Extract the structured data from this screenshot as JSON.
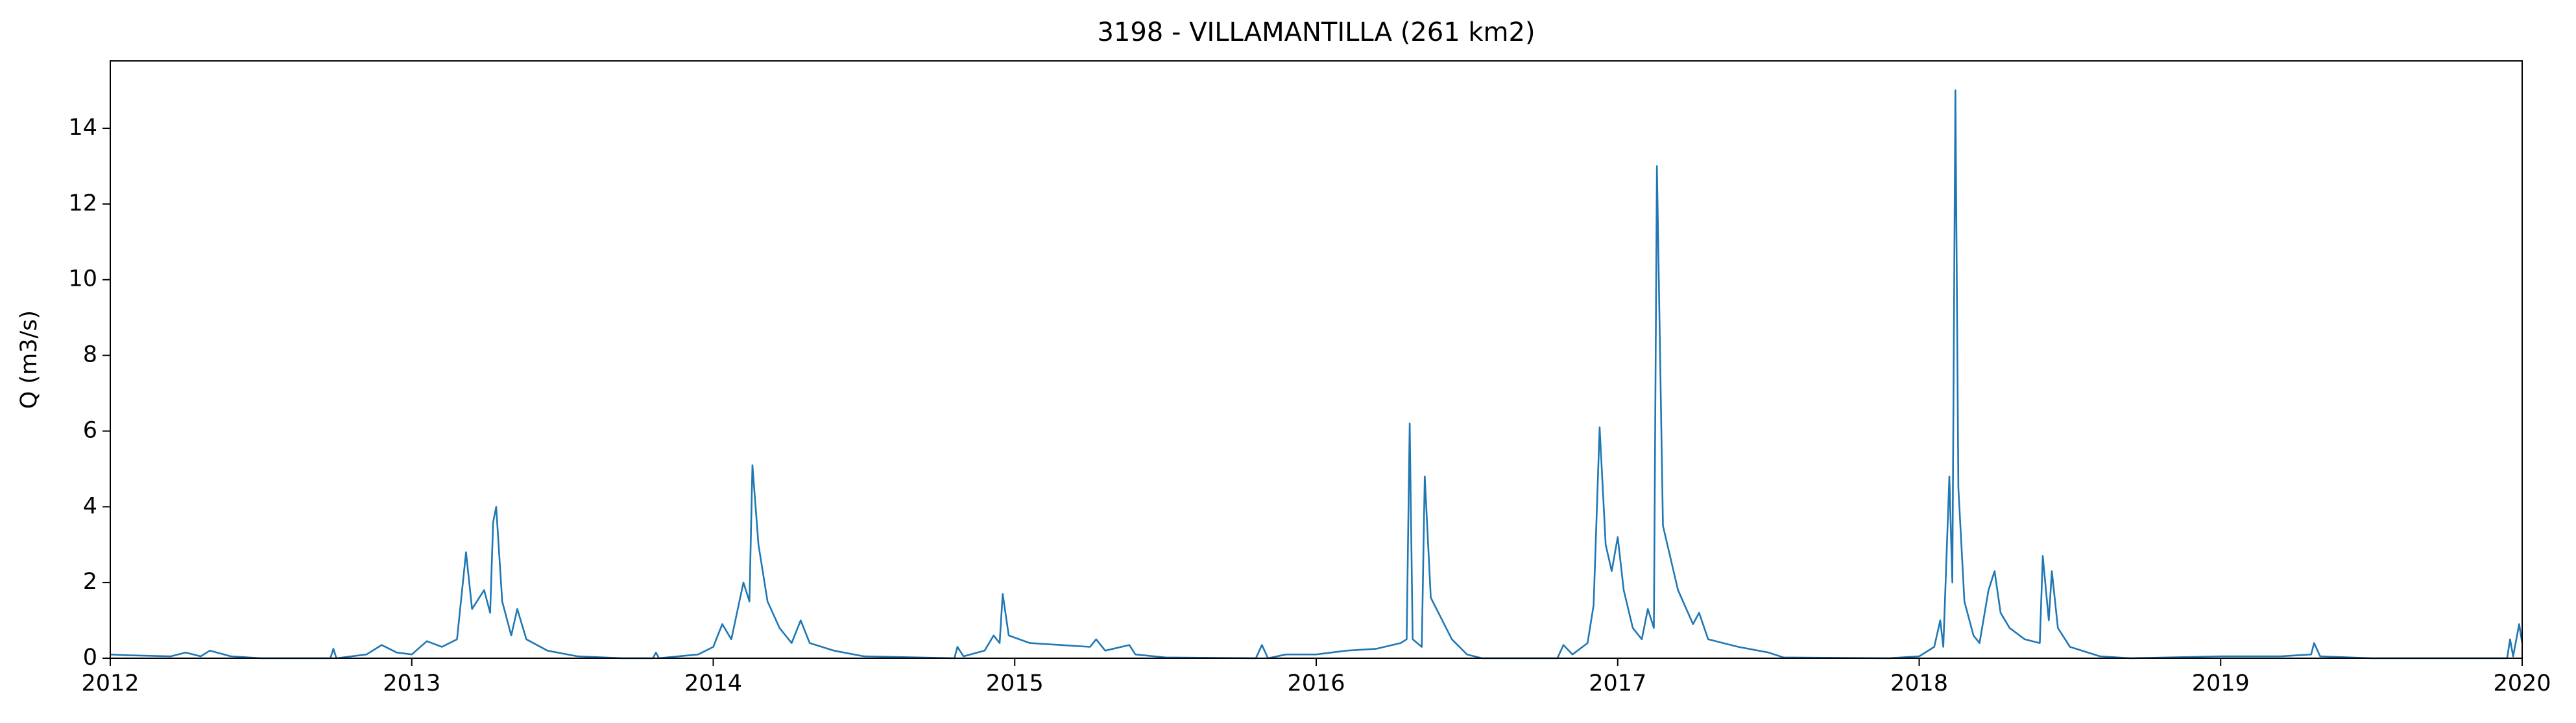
{
  "chart_data": {
    "type": "line",
    "title": "3198 - VILLAMANTILLA (261 km2)",
    "y_label": "Q (m3/s)",
    "x": [
      2012.0,
      2012.05,
      2012.2,
      2012.25,
      2012.3,
      2012.33,
      2012.4,
      2012.5,
      2012.73,
      2012.74,
      2012.75,
      2012.85,
      2012.9,
      2012.95,
      2013.0,
      2013.05,
      2013.1,
      2013.15,
      2013.18,
      2013.2,
      2013.24,
      2013.26,
      2013.27,
      2013.28,
      2013.3,
      2013.33,
      2013.35,
      2013.38,
      2013.45,
      2013.55,
      2013.7,
      2013.8,
      2013.81,
      2013.82,
      2013.95,
      2014.0,
      2014.03,
      2014.06,
      2014.1,
      2014.12,
      2014.13,
      2014.15,
      2014.18,
      2014.22,
      2014.26,
      2014.29,
      2014.32,
      2014.4,
      2014.5,
      2014.8,
      2014.81,
      2014.83,
      2014.9,
      2014.93,
      2014.95,
      2014.96,
      2014.98,
      2015.05,
      2015.15,
      2015.25,
      2015.27,
      2015.3,
      2015.38,
      2015.4,
      2015.5,
      2015.8,
      2015.82,
      2015.84,
      2015.9,
      2016.0,
      2016.1,
      2016.2,
      2016.28,
      2016.3,
      2016.31,
      2016.32,
      2016.35,
      2016.36,
      2016.38,
      2016.45,
      2016.5,
      2016.55,
      2016.8,
      2016.82,
      2016.85,
      2016.9,
      2016.92,
      2016.94,
      2016.96,
      2016.98,
      2017.0,
      2017.02,
      2017.05,
      2017.08,
      2017.1,
      2017.12,
      2017.13,
      2017.15,
      2017.2,
      2017.25,
      2017.27,
      2017.3,
      2017.4,
      2017.5,
      2017.55,
      2017.9,
      2018.0,
      2018.05,
      2018.07,
      2018.08,
      2018.1,
      2018.11,
      2018.12,
      2018.13,
      2018.15,
      2018.18,
      2018.2,
      2018.23,
      2018.25,
      2018.27,
      2018.3,
      2018.35,
      2018.4,
      2018.41,
      2018.43,
      2018.44,
      2018.46,
      2018.5,
      2018.6,
      2018.7,
      2019.0,
      2019.2,
      2019.3,
      2019.31,
      2019.33,
      2019.5,
      2019.95,
      2019.96,
      2019.97,
      2019.99,
      2020.0
    ],
    "values": [
      0.1,
      0.08,
      0.05,
      0.15,
      0.05,
      0.2,
      0.05,
      0,
      0,
      0.25,
      0,
      0.1,
      0.35,
      0.15,
      0.1,
      0.45,
      0.3,
      0.5,
      2.8,
      1.3,
      1.8,
      1.2,
      3.6,
      4.0,
      1.5,
      0.6,
      1.3,
      0.5,
      0.2,
      0.05,
      0,
      0,
      0.15,
      0,
      0.1,
      0.3,
      0.9,
      0.5,
      2.0,
      1.5,
      5.1,
      3.0,
      1.5,
      0.8,
      0.4,
      1.0,
      0.4,
      0.2,
      0.05,
      0,
      0.3,
      0.05,
      0.2,
      0.6,
      0.4,
      1.7,
      0.6,
      0.4,
      0.35,
      0.3,
      0.5,
      0.2,
      0.35,
      0.1,
      0.02,
      0,
      0.35,
      0,
      0.1,
      0.1,
      0.2,
      0.25,
      0.4,
      0.5,
      6.2,
      0.5,
      0.3,
      4.8,
      1.6,
      0.5,
      0.1,
      0,
      0,
      0.35,
      0.1,
      0.4,
      1.4,
      6.1,
      3.0,
      2.3,
      3.2,
      1.8,
      0.8,
      0.5,
      1.3,
      0.8,
      13.0,
      3.5,
      1.8,
      0.9,
      1.2,
      0.5,
      0.3,
      0.15,
      0.02,
      0,
      0.05,
      0.3,
      1.0,
      0.3,
      4.8,
      2.0,
      15.0,
      4.5,
      1.5,
      0.6,
      0.4,
      1.8,
      2.3,
      1.2,
      0.8,
      0.5,
      0.4,
      2.7,
      1.0,
      2.3,
      0.8,
      0.3,
      0.05,
      0,
      0.05,
      0.05,
      0.1,
      0.4,
      0.05,
      0,
      0,
      0.5,
      0.05,
      0.9,
      0.4
    ],
    "color": "#1f77b4",
    "xlim": [
      2012,
      2020
    ],
    "xticks": [
      2012,
      2013,
      2014,
      2015,
      2016,
      2017,
      2018,
      2019,
      2020
    ],
    "ylim": [
      0,
      15.78
    ],
    "yticks": [
      0,
      2,
      4,
      6,
      8,
      10,
      12,
      14
    ]
  }
}
